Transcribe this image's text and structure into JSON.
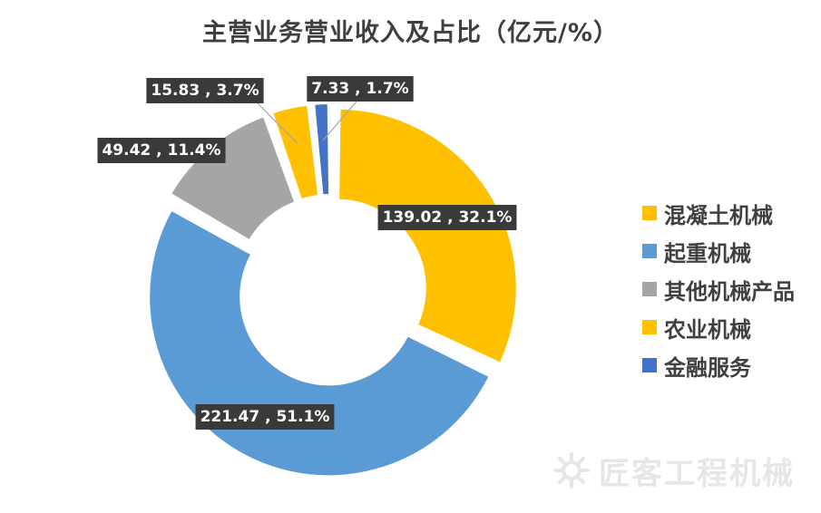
{
  "chart_data": {
    "type": "pie",
    "title": "主营业务营业收入及占比（亿元/%）",
    "donut": true,
    "legend_position": "right",
    "slices": [
      {
        "name": "混凝土机械",
        "value": 139.02,
        "percent": 32.1,
        "label": "139.02 , 32.1%",
        "color": "#ffc000"
      },
      {
        "name": "起重机械",
        "value": 221.47,
        "percent": 51.1,
        "label": "221.47 , 51.1%",
        "color": "#5b9bd5"
      },
      {
        "name": "其他机械产品",
        "value": 49.42,
        "percent": 11.4,
        "label": "49.42 , 11.4%",
        "color": "#a5a5a5"
      },
      {
        "name": "农业机械",
        "value": 15.83,
        "percent": 3.7,
        "label": "15.83 , 3.7%",
        "color": "#ffc000"
      },
      {
        "name": "金融服务",
        "value": 7.33,
        "percent": 1.7,
        "label": "7.33 , 1.7%",
        "color": "#4472c4"
      }
    ]
  },
  "watermark": {
    "text": "匠客工程机械"
  }
}
